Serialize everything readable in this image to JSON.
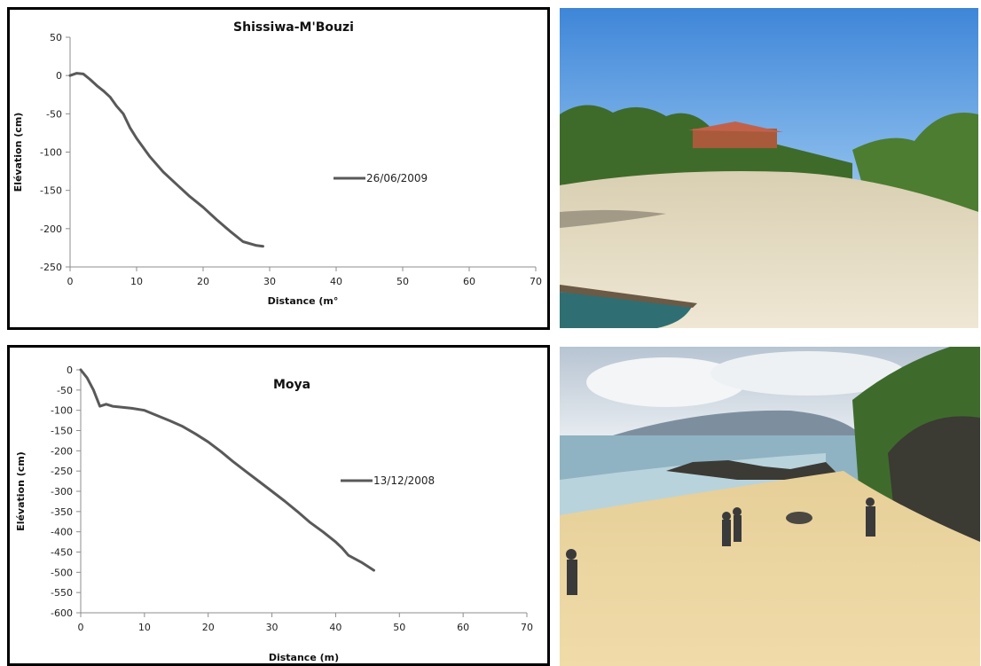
{
  "chart_data": [
    {
      "type": "line",
      "title": "Shissiwa-M'Bouzi",
      "xlabel": "Distance (m°",
      "ylabel": "Elévation (cm)",
      "xlim": [
        0,
        70
      ],
      "ylim": [
        -250,
        50
      ],
      "xticks": [
        "0",
        "10",
        "20",
        "30",
        "40",
        "50",
        "60",
        "70"
      ],
      "yticks": [
        "50",
        "0",
        "-50",
        "-100",
        "-150",
        "-200",
        "-250"
      ],
      "grid": false,
      "legend_position": "right",
      "series": [
        {
          "name": "26/06/2009",
          "color": "#595959",
          "x": [
            0,
            1,
            2,
            3,
            4,
            5,
            6,
            7,
            8,
            9,
            10,
            12,
            14,
            16,
            18,
            20,
            22,
            24,
            26,
            28,
            29
          ],
          "y": [
            0,
            3,
            2,
            -5,
            -13,
            -20,
            -28,
            -40,
            -50,
            -68,
            -82,
            -106,
            -126,
            -142,
            -158,
            -172,
            -188,
            -203,
            -217,
            -222,
            -223
          ]
        }
      ]
    },
    {
      "type": "line",
      "title": "Moya",
      "xlabel": "Distance  (m)",
      "ylabel": "Elévation (cm)",
      "xlim": [
        0,
        70
      ],
      "ylim": [
        -600,
        0
      ],
      "xticks": [
        "0",
        "10",
        "20",
        "30",
        "40",
        "50",
        "60",
        "70"
      ],
      "yticks": [
        "0",
        "-50",
        "-100",
        "-150",
        "-200",
        "-250",
        "-300",
        "-350",
        "-400",
        "-450",
        "-500",
        "-550",
        "-600"
      ],
      "grid": false,
      "legend_position": "right",
      "series": [
        {
          "name": "13/12/2008",
          "color": "#595959",
          "x": [
            0,
            1,
            2,
            3,
            4,
            5,
            8,
            10,
            12,
            14,
            16,
            18,
            20,
            22,
            24,
            26,
            28,
            30,
            32,
            34,
            36,
            38,
            40,
            41,
            42,
            44,
            45,
            46
          ],
          "y": [
            0,
            -20,
            -50,
            -90,
            -85,
            -90,
            -95,
            -100,
            -113,
            -126,
            -140,
            -158,
            -178,
            -202,
            -228,
            -252,
            -276,
            -300,
            -324,
            -350,
            -377,
            -400,
            -425,
            -440,
            -458,
            -475,
            -485,
            -495
          ]
        }
      ]
    }
  ],
  "photos": [
    {
      "subject": "beach-shissiwa-mbouzi"
    },
    {
      "subject": "beach-moya"
    }
  ]
}
